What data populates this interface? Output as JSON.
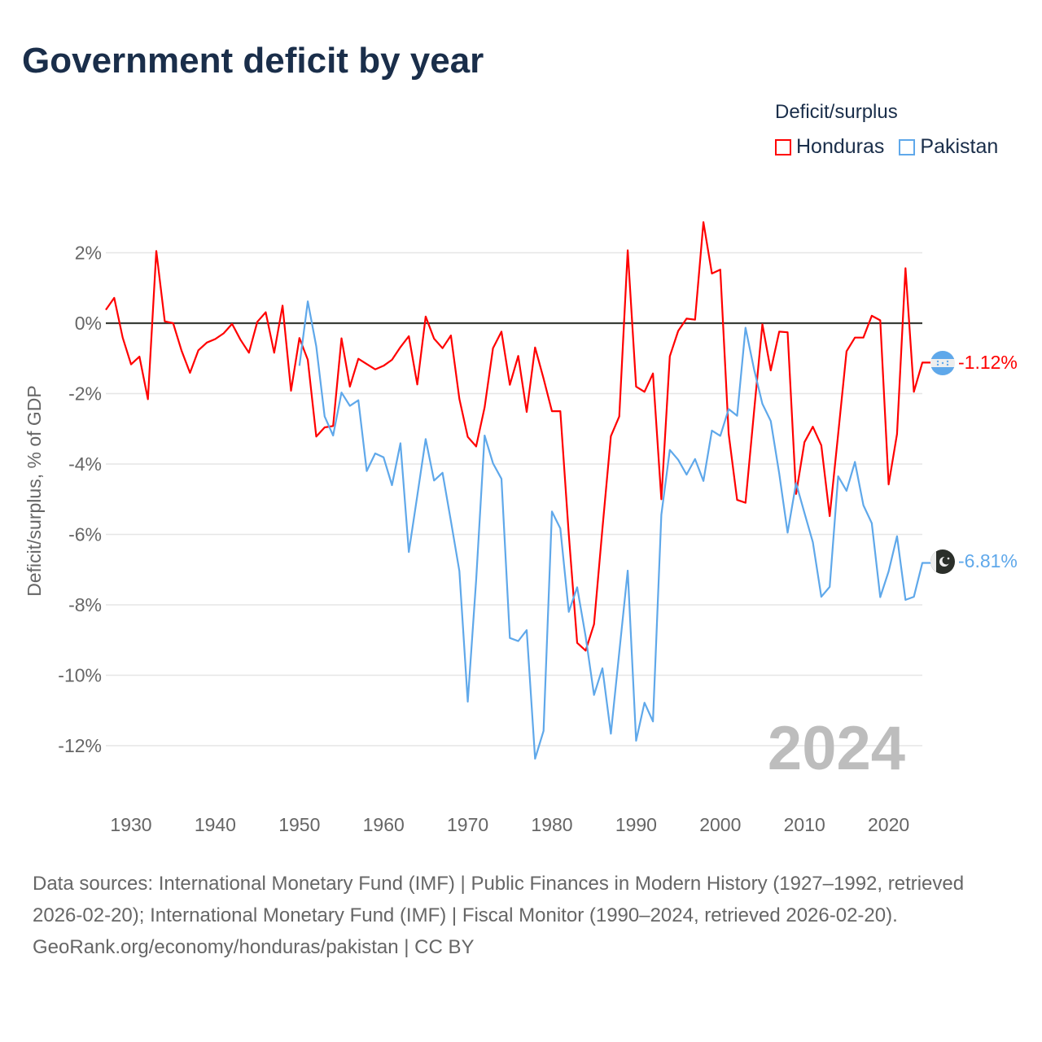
{
  "title": "Government deficit by year",
  "legend": {
    "title": "Deficit/surplus",
    "items": [
      {
        "label": "Honduras",
        "color": "#ff0000"
      },
      {
        "label": "Pakistan",
        "color": "#5fa8ea"
      }
    ]
  },
  "watermark_year": "2024",
  "end_labels": {
    "honduras": "-1.12%",
    "pakistan": "-6.81%"
  },
  "flags": {
    "honduras": "honduras-flag-icon",
    "pakistan": "pakistan-flag-icon"
  },
  "footer": {
    "sources": "Data sources: International Monetary Fund (IMF) | Public Finances in Modern History (1927–1992, retrieved 2026-02-20); International Monetary Fund (IMF) | Fiscal Monitor (1990–2024, retrieved 2026-02-20).",
    "credit": "GeoRank.org/economy/honduras/pakistan | CC BY"
  },
  "chart_data": {
    "type": "line",
    "title": "Government deficit by year",
    "xlabel": "",
    "ylabel": "Deficit/surplus, % of GDP",
    "xlim": [
      1927,
      2024
    ],
    "ylim": [
      -13,
      3
    ],
    "x_ticks": [
      1930,
      1940,
      1950,
      1960,
      1970,
      1980,
      1990,
      2000,
      2010,
      2020
    ],
    "y_ticks": [
      2,
      0,
      -2,
      -4,
      -6,
      -8,
      -10,
      -12
    ],
    "y_tick_labels": [
      "2%",
      "0%",
      "-2%",
      "-4%",
      "-6%",
      "-8%",
      "-10%",
      "-12%"
    ],
    "grid": true,
    "legend_position": "top-right",
    "series": [
      {
        "name": "Honduras",
        "color": "#ff0000",
        "start_year": 1927,
        "values": [
          0.38,
          0.72,
          -0.41,
          -1.17,
          -0.95,
          -2.16,
          2.05,
          0.05,
          0,
          -0.78,
          -1.41,
          -0.77,
          -0.55,
          -0.45,
          -0.29,
          -0.02,
          -0.47,
          -0.84,
          0.04,
          0.31,
          -0.84,
          0.5,
          -1.92,
          -0.42,
          -1.04,
          -3.22,
          -2.96,
          -2.92,
          -0.43,
          -1.8,
          -1.01,
          -1.16,
          -1.31,
          -1.21,
          -1.04,
          -0.68,
          -0.37,
          -1.74,
          0.19,
          -0.44,
          -0.71,
          -0.35,
          -2.15,
          -3.23,
          -3.5,
          -2.39,
          -0.71,
          -0.24,
          -1.75,
          -0.93,
          -2.52,
          -0.69,
          -1.57,
          -2.5,
          -2.5,
          -6.0,
          -9.08,
          -9.3,
          -8.55,
          -5.84,
          -3.21,
          -2.65,
          2.07,
          -1.8,
          -1.95,
          -1.43,
          -5.0,
          -0.94,
          -0.22,
          0.13,
          0.1,
          2.87,
          1.41,
          1.52,
          -3.14,
          -5.02,
          -5.1,
          -2.53,
          -0.03,
          -1.34,
          -0.24,
          -0.26,
          -4.85,
          -3.38,
          -2.94,
          -3.47,
          -5.48,
          -3.15,
          -0.8,
          -0.41,
          -0.41,
          0.21,
          0.08,
          -4.58,
          -3.15,
          1.56,
          -1.95,
          -1.12
        ]
      },
      {
        "name": "Pakistan",
        "color": "#5fa8ea",
        "start_year": 1950,
        "values": [
          -1.21,
          0.62,
          -0.66,
          -2.65,
          -3.19,
          -1.97,
          -2.35,
          -2.19,
          -4.2,
          -3.7,
          -3.81,
          -4.6,
          -3.41,
          -6.5,
          -4.9,
          -3.29,
          -4.47,
          -4.25,
          -5.62,
          -7.04,
          -10.75,
          -7.3,
          -3.19,
          -3.98,
          -4.42,
          -8.94,
          -9.03,
          -8.72,
          -12.37,
          -11.58,
          -5.35,
          -5.83,
          -8.2,
          -7.5,
          -8.9,
          -10.56,
          -9.8,
          -11.66,
          -9.35,
          -7.03,
          -11.86,
          -10.78,
          -11.31,
          -5.44,
          -3.6,
          -3.88,
          -4.3,
          -3.86,
          -4.48,
          -3.05,
          -3.2,
          -2.44,
          -2.63,
          -0.13,
          -1.3,
          -2.29,
          -2.78,
          -4.27,
          -5.95,
          -4.54,
          -5.39,
          -6.22,
          -7.77,
          -7.49,
          -4.35,
          -4.76,
          -3.94,
          -5.17,
          -5.68,
          -7.78,
          -7.05,
          -6.05,
          -7.86,
          -7.77,
          -6.81
        ]
      }
    ]
  }
}
